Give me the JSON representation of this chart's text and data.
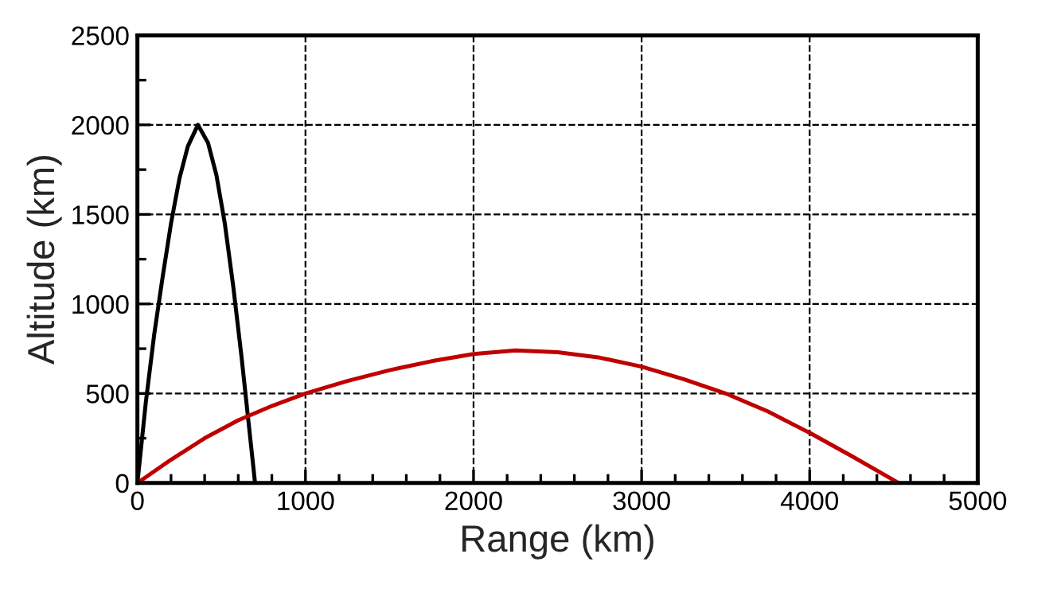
{
  "chart_data": {
    "type": "line",
    "xlabel": "Range (km)",
    "ylabel": "Altitude (km)",
    "xlim": [
      0,
      5000
    ],
    "ylim": [
      0,
      2500
    ],
    "xticks": [
      0,
      {
        "value": 200,
        "label": null
      },
      {
        "value": 400,
        "label": null
      },
      {
        "value": 600,
        "label": null
      },
      {
        "value": 800,
        "label": null
      },
      1000,
      {
        "value": 1200,
        "label": null
      },
      {
        "value": 1400,
        "label": null
      },
      {
        "value": 1600,
        "label": null
      },
      {
        "value": 1800,
        "label": null
      },
      2000,
      {
        "value": 2200,
        "label": null
      },
      {
        "value": 2400,
        "label": null
      },
      {
        "value": 2600,
        "label": null
      },
      {
        "value": 2800,
        "label": null
      },
      3000,
      {
        "value": 3200,
        "label": null
      },
      {
        "value": 3400,
        "label": null
      },
      {
        "value": 3600,
        "label": null
      },
      {
        "value": 3800,
        "label": null
      },
      4000,
      {
        "value": 4200,
        "label": null
      },
      {
        "value": 4400,
        "label": null
      },
      {
        "value": 4600,
        "label": null
      },
      {
        "value": 4800,
        "label": null
      },
      5000
    ],
    "yticks": [
      0,
      {
        "value": 250,
        "label": null
      },
      500,
      {
        "value": 750,
        "label": null
      },
      1000,
      {
        "value": 1250,
        "label": null
      },
      1500,
      {
        "value": 1750,
        "label": null
      },
      2000,
      {
        "value": 2250,
        "label": null
      },
      2500
    ],
    "grid": true,
    "line_style": "solid",
    "marker": "none",
    "series": [
      {
        "color": "#000000",
        "x": [
          0,
          50,
          100,
          150,
          200,
          250,
          300,
          360,
          420,
          470,
          520,
          570,
          620,
          660,
          700
        ],
        "values": [
          0,
          450,
          830,
          1150,
          1450,
          1700,
          1880,
          2000,
          1900,
          1720,
          1450,
          1100,
          700,
          350,
          0
        ]
      },
      {
        "color": "#c00000",
        "x": [
          0,
          200,
          400,
          600,
          800,
          1000,
          1250,
          1500,
          1750,
          2000,
          2250,
          2500,
          2750,
          3000,
          3250,
          3500,
          3750,
          4000,
          4250,
          4530
        ],
        "values": [
          0,
          130,
          250,
          350,
          430,
          500,
          570,
          630,
          680,
          720,
          740,
          730,
          700,
          650,
          580,
          500,
          400,
          280,
          150,
          0
        ]
      }
    ]
  }
}
